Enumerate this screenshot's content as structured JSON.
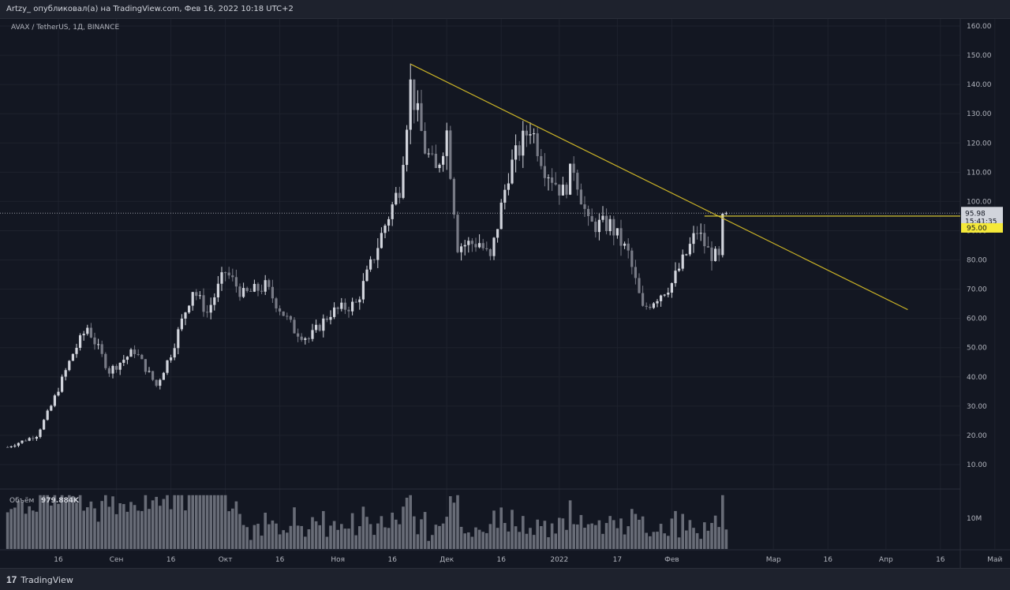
{
  "header": {
    "publish_line": "Artzy_ опубликовал(а) на TradingView.com, Фев 16, 2022 10:18 UTC+2"
  },
  "footer": {
    "brand_logo": "17",
    "brand_name": "TradingView"
  },
  "chart_data": {
    "type": "candlestick",
    "symbol_line": "AVAX / TetherUS, 1Д, BINANCE",
    "ylim": [
      0,
      165
    ],
    "y_ticks": [
      "160.00",
      "150.00",
      "140.00",
      "130.00",
      "120.00",
      "110.00",
      "100.00",
      "90.00",
      "80.00",
      "70.00",
      "60.00",
      "50.00",
      "40.00",
      "30.00",
      "20.00",
      "10.00"
    ],
    "x_ticks": [
      "16",
      "Сен",
      "16",
      "Окт",
      "16",
      "Ноя",
      "16",
      "Дек",
      "16",
      "2022",
      "17",
      "Фев",
      "Мар",
      "16",
      "Апр",
      "16",
      "Май"
    ],
    "last_price": "95.98",
    "countdown": "15:41:35",
    "level_label": "95.00",
    "colors": {
      "up": "#d1d4dc",
      "down": "#787b86",
      "trendline": "#c9b227",
      "level": "#e8d534",
      "grid": "#1e222d",
      "text": "#b2b5be",
      "level_label_bg": "#f5e93a"
    },
    "trendline": {
      "start": {
        "date": "2021-11-21",
        "price": 147
      },
      "end": {
        "date": "2022-04-07",
        "price": 63
      }
    },
    "horizontal_level": {
      "price": 95,
      "from_date": "2022-02-10"
    },
    "volume_panel": {
      "label": "Объём",
      "value": "979.884K",
      "tick": "10M"
    },
    "series_anchors": [
      {
        "date": "2021-08-02",
        "price": 16
      },
      {
        "date": "2021-08-10",
        "price": 20
      },
      {
        "date": "2021-08-14",
        "price": 30
      },
      {
        "date": "2021-08-20",
        "price": 48
      },
      {
        "date": "2021-08-24",
        "price": 57
      },
      {
        "date": "2021-08-30",
        "price": 42
      },
      {
        "date": "2021-09-06",
        "price": 49
      },
      {
        "date": "2021-09-12",
        "price": 37
      },
      {
        "date": "2021-09-16",
        "price": 48
      },
      {
        "date": "2021-09-22",
        "price": 70
      },
      {
        "date": "2021-09-26",
        "price": 62
      },
      {
        "date": "2021-10-01",
        "price": 76
      },
      {
        "date": "2021-10-06",
        "price": 68
      },
      {
        "date": "2021-10-12",
        "price": 71
      },
      {
        "date": "2021-10-20",
        "price": 56
      },
      {
        "date": "2021-10-24",
        "price": 53
      },
      {
        "date": "2021-10-30",
        "price": 62
      },
      {
        "date": "2021-11-06",
        "price": 65
      },
      {
        "date": "2021-11-10",
        "price": 78
      },
      {
        "date": "2021-11-14",
        "price": 92
      },
      {
        "date": "2021-11-18",
        "price": 105
      },
      {
        "date": "2021-11-21",
        "price": 140
      },
      {
        "date": "2021-11-25",
        "price": 118
      },
      {
        "date": "2021-11-28",
        "price": 110
      },
      {
        "date": "2021-12-01",
        "price": 124
      },
      {
        "date": "2021-12-04",
        "price": 85
      },
      {
        "date": "2021-12-10",
        "price": 86
      },
      {
        "date": "2021-12-13",
        "price": 80
      },
      {
        "date": "2021-12-18",
        "price": 110
      },
      {
        "date": "2021-12-24",
        "price": 126
      },
      {
        "date": "2021-12-28",
        "price": 112
      },
      {
        "date": "2022-01-02",
        "price": 103
      },
      {
        "date": "2022-01-05",
        "price": 112
      },
      {
        "date": "2022-01-09",
        "price": 92
      },
      {
        "date": "2022-01-15",
        "price": 92
      },
      {
        "date": "2022-01-20",
        "price": 82
      },
      {
        "date": "2022-01-24",
        "price": 63
      },
      {
        "date": "2022-02-01",
        "price": 72
      },
      {
        "date": "2022-02-05",
        "price": 82
      },
      {
        "date": "2022-02-08",
        "price": 90
      },
      {
        "date": "2022-02-11",
        "price": 83
      },
      {
        "date": "2022-02-14",
        "price": 80
      },
      {
        "date": "2022-02-15",
        "price": 93
      },
      {
        "date": "2022-02-16",
        "price": 95.98
      }
    ]
  }
}
